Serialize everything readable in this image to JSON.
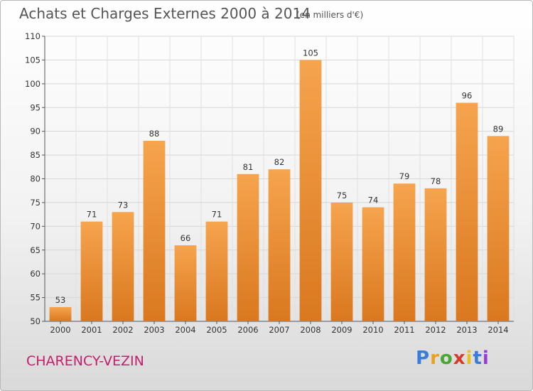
{
  "header": {
    "title": "Achats et Charges Externes 2000 à 2014",
    "subtitle": "(en milliers d'€)"
  },
  "footer": {
    "city": "CHARENCY-VEZIN",
    "logo_text": "Proxiti",
    "logo_colors": [
      "#3a7dd8",
      "#e8a21a",
      "#4aa832",
      "#d83a2a",
      "#e8c21a",
      "#3a7dd8",
      "#9b3ad8"
    ]
  },
  "chart_data": {
    "type": "bar",
    "categories": [
      "2000",
      "2001",
      "2002",
      "2003",
      "2004",
      "2005",
      "2006",
      "2007",
      "2008",
      "2009",
      "2010",
      "2011",
      "2012",
      "2013",
      "2014"
    ],
    "values": [
      53,
      71,
      73,
      88,
      66,
      71,
      81,
      82,
      105,
      75,
      74,
      79,
      78,
      96,
      89
    ],
    "ylim": [
      50,
      110
    ],
    "yticks": [
      50,
      55,
      60,
      65,
      70,
      75,
      80,
      85,
      90,
      95,
      100,
      105,
      110
    ],
    "grid": true,
    "bar_color_top": "#f6a44e",
    "bar_color_bottom": "#d9781f"
  }
}
